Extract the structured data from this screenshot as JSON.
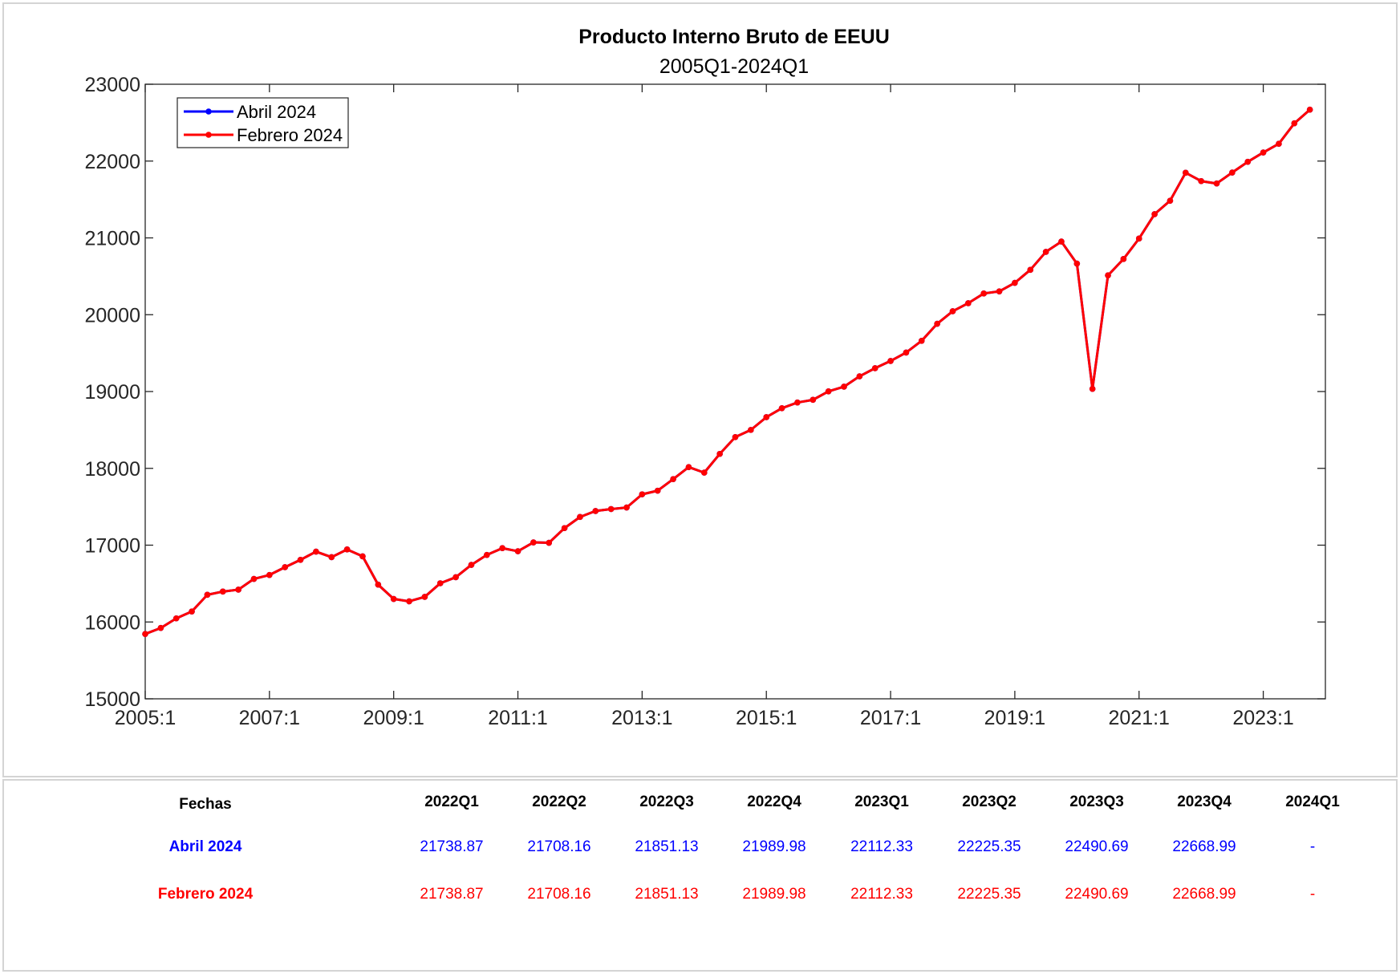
{
  "chart_data": {
    "type": "line",
    "title": "Producto Interno Bruto de EEUU",
    "subtitle": "2005Q1-2024Q1",
    "xlabel": "",
    "ylabel": "",
    "ylim": [
      15000,
      23000
    ],
    "yticks": [
      "15000",
      "16000",
      "17000",
      "18000",
      "19000",
      "20000",
      "21000",
      "22000",
      "23000"
    ],
    "xticks": [
      "2005:1",
      "2007:1",
      "2009:1",
      "2011:1",
      "2013:1",
      "2015:1",
      "2017:1",
      "2019:1",
      "2021:1",
      "2023:1"
    ],
    "x_start": "2005Q1",
    "x_end": "2024Q1",
    "legend_position": "top-left",
    "grid": false,
    "series": [
      {
        "name": "Abril 2024",
        "color": "#0000ff",
        "values": [
          15844,
          15922,
          16047,
          16137,
          16354,
          16396,
          16421,
          16561,
          16612,
          16713,
          16809,
          16916,
          16844,
          16944,
          16855,
          16486,
          16300,
          16269,
          16327,
          16504,
          16583,
          16743,
          16873,
          16961,
          16921,
          17036,
          17031,
          17222,
          17367,
          17445,
          17470,
          17490,
          17662,
          17709,
          17860,
          18016,
          17944,
          18188,
          18407,
          18500,
          18666,
          18783,
          18857,
          18892,
          19002,
          19063,
          19198,
          19304,
          19398,
          19507,
          19660,
          19882,
          20045,
          20150,
          20276,
          20304,
          20415,
          20584,
          20818,
          20952,
          20665,
          19034,
          20512,
          20725,
          20991,
          21309,
          21484,
          21848,
          21739,
          21708,
          21851,
          21990,
          22112,
          22225,
          22491,
          22669
        ]
      },
      {
        "name": "Febrero 2024",
        "color": "#ff0000",
        "values": [
          15844,
          15922,
          16047,
          16137,
          16354,
          16396,
          16421,
          16561,
          16612,
          16713,
          16809,
          16916,
          16844,
          16944,
          16855,
          16486,
          16300,
          16269,
          16327,
          16504,
          16583,
          16743,
          16873,
          16961,
          16921,
          17036,
          17031,
          17222,
          17367,
          17445,
          17470,
          17490,
          17662,
          17709,
          17860,
          18016,
          17944,
          18188,
          18407,
          18500,
          18666,
          18783,
          18857,
          18892,
          19002,
          19063,
          19198,
          19304,
          19398,
          19507,
          19660,
          19882,
          20045,
          20150,
          20276,
          20304,
          20415,
          20584,
          20818,
          20952,
          20665,
          19034,
          20512,
          20725,
          20991,
          21309,
          21484,
          21848,
          21739,
          21708,
          21851,
          21990,
          22112,
          22225,
          22491,
          22669
        ]
      }
    ]
  },
  "table": {
    "header_label": "Fechas",
    "columns": [
      "2022Q1",
      "2022Q2",
      "2022Q3",
      "2022Q4",
      "2023Q1",
      "2023Q2",
      "2023Q3",
      "2023Q4",
      "2024Q1"
    ],
    "rows": [
      {
        "label": "Abril 2024",
        "color": "#0000ff",
        "values": [
          "21738.87",
          "21708.16",
          "21851.13",
          "21989.98",
          "22112.33",
          "22225.35",
          "22490.69",
          "22668.99",
          "-"
        ]
      },
      {
        "label": "Febrero 2024",
        "color": "#ff0000",
        "values": [
          "21738.87",
          "21708.16",
          "21851.13",
          "21989.98",
          "22112.33",
          "22225.35",
          "22490.69",
          "22668.99",
          "-"
        ]
      }
    ]
  }
}
